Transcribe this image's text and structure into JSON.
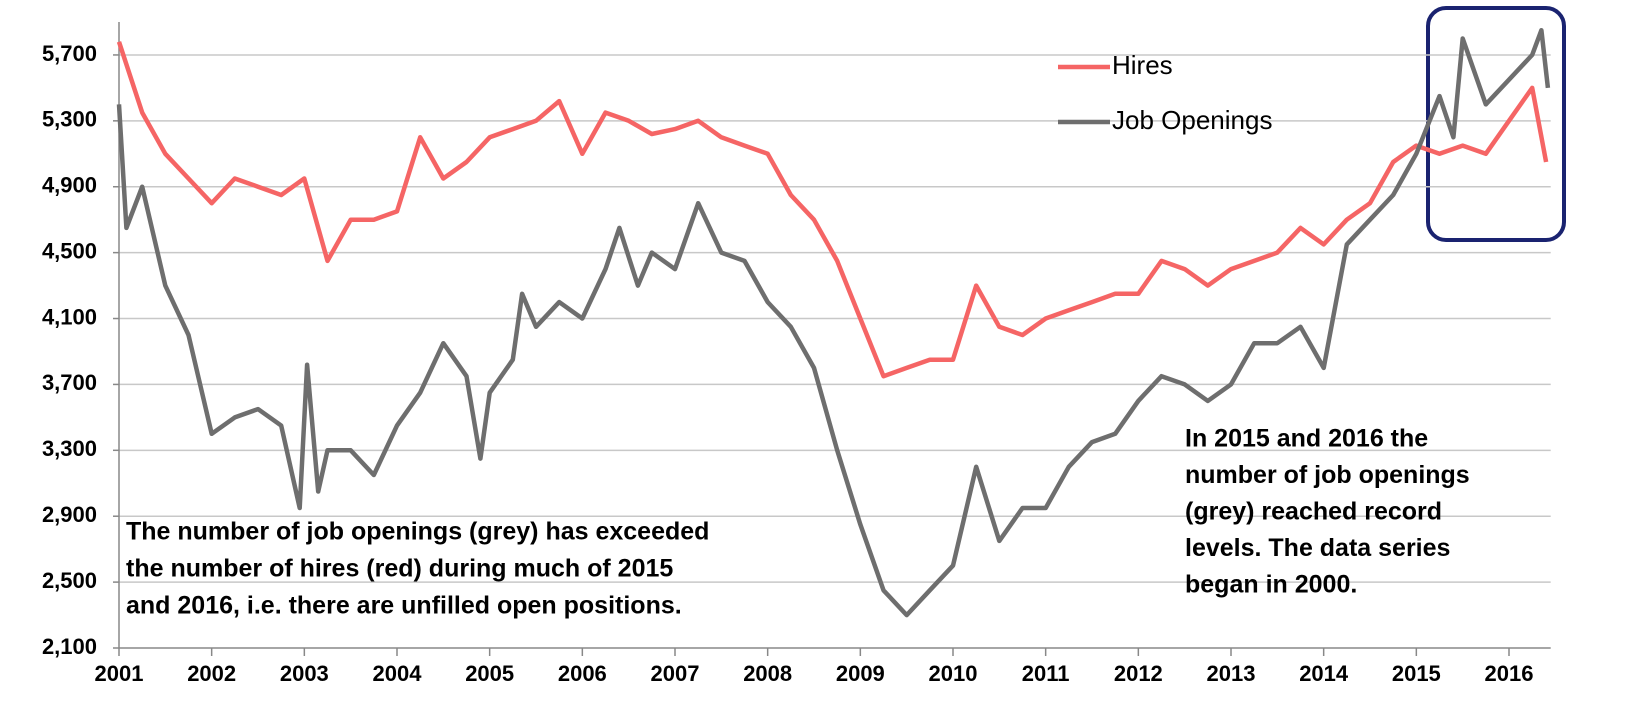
{
  "chart_data": {
    "type": "line",
    "xlim": [
      2001,
      2016.45
    ],
    "xticks": [
      2001,
      2002,
      2003,
      2004,
      2005,
      2006,
      2007,
      2008,
      2009,
      2010,
      2011,
      2012,
      2013,
      2014,
      2015,
      2016
    ],
    "ylim": [
      2100,
      5900
    ],
    "yticks": [
      {
        "value": 2100,
        "label": "2,100"
      },
      {
        "value": 2500,
        "label": "2,500"
      },
      {
        "value": 2900,
        "label": "2,900"
      },
      {
        "value": 3300,
        "label": "3,300"
      },
      {
        "value": 3700,
        "label": "3,700"
      },
      {
        "value": 4100,
        "label": "4,100"
      },
      {
        "value": 4500,
        "label": "4,500"
      },
      {
        "value": 4900,
        "label": "4,900"
      },
      {
        "value": 5300,
        "label": "5,300"
      },
      {
        "value": 5700,
        "label": "5,700"
      }
    ],
    "grid": true,
    "legend": "upper right",
    "series": [
      {
        "name": "Hires",
        "color": "#f56565",
        "x": [
          2001,
          2001.25,
          2001.5,
          2001.75,
          2002,
          2002.25,
          2002.5,
          2002.75,
          2003,
          2003.25,
          2003.5,
          2003.75,
          2004,
          2004.25,
          2004.5,
          2004.75,
          2005,
          2005.25,
          2005.5,
          2005.75,
          2006,
          2006.25,
          2006.5,
          2006.75,
          2007,
          2007.25,
          2007.5,
          2007.75,
          2008,
          2008.25,
          2008.5,
          2008.75,
          2009,
          2009.25,
          2009.5,
          2009.75,
          2010,
          2010.25,
          2010.5,
          2010.75,
          2011,
          2011.25,
          2011.5,
          2011.75,
          2012,
          2012.25,
          2012.5,
          2012.75,
          2013,
          2013.25,
          2013.5,
          2013.75,
          2014,
          2014.25,
          2014.5,
          2014.75,
          2015,
          2015.25,
          2015.5,
          2015.75,
          2016,
          2016.25,
          2016.4
        ],
        "values": [
          5780,
          5350,
          5100,
          4950,
          4800,
          4950,
          4900,
          4850,
          4950,
          4450,
          4700,
          4700,
          4750,
          5200,
          4950,
          5050,
          5200,
          5250,
          5300,
          5420,
          5100,
          5350,
          5300,
          5220,
          5250,
          5300,
          5200,
          5150,
          5100,
          4850,
          4700,
          4450,
          4100,
          3750,
          3800,
          3850,
          3850,
          4300,
          4050,
          4000,
          4100,
          4150,
          4200,
          4250,
          4250,
          4450,
          4400,
          4300,
          4400,
          4450,
          4500,
          4650,
          4550,
          4700,
          4800,
          5050,
          5150,
          5100,
          5150,
          5100,
          5300,
          5500,
          5050
        ]
      },
      {
        "name": "Job Openings",
        "color": "#6e6e6e",
        "x": [
          2001,
          2001.08,
          2001.25,
          2001.5,
          2001.75,
          2002,
          2002.25,
          2002.5,
          2002.75,
          2002.95,
          2003.03,
          2003.15,
          2003.25,
          2003.5,
          2003.75,
          2004,
          2004.25,
          2004.5,
          2004.75,
          2004.9,
          2005,
          2005.25,
          2005.35,
          2005.5,
          2005.75,
          2006,
          2006.25,
          2006.4,
          2006.6,
          2006.75,
          2007,
          2007.25,
          2007.5,
          2007.75,
          2008,
          2008.25,
          2008.5,
          2008.75,
          2009,
          2009.25,
          2009.5,
          2009.75,
          2010,
          2010.25,
          2010.5,
          2010.75,
          2011,
          2011.25,
          2011.5,
          2011.75,
          2012,
          2012.25,
          2012.5,
          2012.75,
          2013,
          2013.25,
          2013.5,
          2013.75,
          2014,
          2014.25,
          2014.5,
          2014.75,
          2015,
          2015.25,
          2015.4,
          2015.5,
          2015.75,
          2016,
          2016.25,
          2016.35,
          2016.42
        ],
        "values": [
          5400,
          4650,
          4900,
          4300,
          4000,
          3400,
          3500,
          3550,
          3450,
          2950,
          3820,
          3050,
          3300,
          3300,
          3150,
          3450,
          3650,
          3950,
          3750,
          3250,
          3650,
          3850,
          4250,
          4050,
          4200,
          4100,
          4400,
          4650,
          4300,
          4500,
          4400,
          4800,
          4500,
          4450,
          4200,
          4050,
          3800,
          3300,
          2850,
          2450,
          2300,
          2450,
          2600,
          3200,
          2750,
          2950,
          2950,
          3200,
          3350,
          3400,
          3600,
          3750,
          3700,
          3600,
          3700,
          3950,
          3950,
          4050,
          3800,
          4550,
          4700,
          4850,
          5100,
          5450,
          5200,
          5800,
          5400,
          5550,
          5700,
          5850,
          5500
        ]
      }
    ],
    "annotations": [
      [
        "The number of job openings (grey) has exceeded",
        "the number of hires (red) during much of 2015",
        "and 2016, i.e. there are unfilled open positions."
      ],
      [
        "In 2015 and 2016 the",
        "number of job openings",
        "(grey) reached record",
        "levels. The data series",
        "began in 2000."
      ]
    ]
  }
}
